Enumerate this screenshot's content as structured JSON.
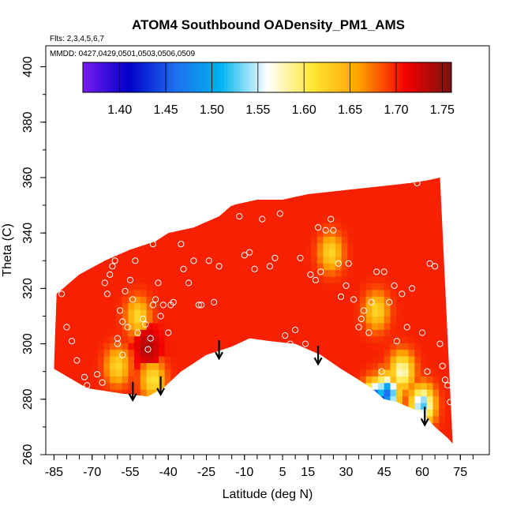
{
  "chart_data": {
    "type": "heatmap",
    "title": "ATOM4 Southbound OADensity_PM1_AMS",
    "annotations": [
      "Flts: 2,3,4,5,6,7",
      "MMDD: 0427,0429,0501,0503,0506,0509"
    ],
    "xlabel": "Latitude (deg N)",
    "ylabel": "Theta (C)",
    "xlim": [
      -87,
      83
    ],
    "ylim": [
      260,
      405
    ],
    "x_ticks": [
      -85,
      -70,
      -55,
      -40,
      -25,
      -10,
      5,
      15,
      30,
      45,
      60,
      75
    ],
    "y_ticks": [
      260,
      280,
      300,
      320,
      340,
      360,
      380,
      400
    ],
    "colorbar": {
      "range": [
        1.36,
        1.76
      ],
      "ticks": [
        1.4,
        1.45,
        1.5,
        1.55,
        1.6,
        1.65,
        1.7,
        1.75
      ],
      "colors": [
        "#7a1cf0",
        "#0000c8",
        "#1e6ef0",
        "#00b4f0",
        "#ffffff",
        "#ffe632",
        "#ffa000",
        "#f50000",
        "#78140f"
      ]
    },
    "field": {
      "base_value": 1.7,
      "upper_boundary": [
        [
          -84,
          318
        ],
        [
          -75,
          325
        ],
        [
          -65,
          330
        ],
        [
          -55,
          334
        ],
        [
          -45,
          337
        ],
        [
          -40,
          340
        ],
        [
          -30,
          342
        ],
        [
          -20,
          346
        ],
        [
          -15,
          350
        ],
        [
          -5,
          352
        ],
        [
          5,
          352
        ],
        [
          15,
          354
        ],
        [
          25,
          355
        ],
        [
          35,
          356
        ],
        [
          45,
          357
        ],
        [
          55,
          358
        ],
        [
          62,
          359
        ],
        [
          67,
          360
        ]
      ],
      "lower_boundary": [
        [
          -85,
          291
        ],
        [
          -72,
          284
        ],
        [
          -58,
          282
        ],
        [
          -48,
          281
        ],
        [
          -42,
          284
        ],
        [
          -35,
          290
        ],
        [
          -25,
          296
        ],
        [
          -15,
          299
        ],
        [
          -8,
          302
        ],
        [
          0,
          301
        ],
        [
          10,
          300
        ],
        [
          20,
          296
        ],
        [
          28,
          291
        ],
        [
          35,
          287
        ],
        [
          40,
          284
        ],
        [
          45,
          280
        ],
        [
          50,
          279
        ],
        [
          55,
          277
        ],
        [
          60,
          275
        ],
        [
          65,
          270
        ],
        [
          70,
          266
        ],
        [
          72,
          264
        ]
      ],
      "features": [
        {
          "lat": -52,
          "theta": 310,
          "value": 1.62
        },
        {
          "lat": -60,
          "theta": 292,
          "value": 1.62
        },
        {
          "lat": -46,
          "theta": 287,
          "value": 1.61
        },
        {
          "lat": 24,
          "theta": 333,
          "value": 1.62
        },
        {
          "lat": 42,
          "theta": 312,
          "value": 1.62
        },
        {
          "lat": 52,
          "theta": 290,
          "value": 1.57
        },
        {
          "lat": 46,
          "theta": 282,
          "value": 1.46
        },
        {
          "lat": 42,
          "theta": 279,
          "value": 1.38
        },
        {
          "lat": 60,
          "theta": 278,
          "value": 1.52
        },
        {
          "lat": -48,
          "theta": 299,
          "value": 1.74
        }
      ]
    },
    "points": [
      [
        -82,
        318
      ],
      [
        -80,
        306
      ],
      [
        -78,
        301
      ],
      [
        -76,
        294
      ],
      [
        -73,
        288
      ],
      [
        -72,
        285
      ],
      [
        -68,
        289
      ],
      [
        -66,
        286
      ],
      [
        -65,
        322
      ],
      [
        -64,
        318
      ],
      [
        -63,
        325
      ],
      [
        -62,
        328
      ],
      [
        -61,
        330
      ],
      [
        -60,
        300
      ],
      [
        -60,
        302
      ],
      [
        -59,
        312
      ],
      [
        -58,
        308
      ],
      [
        -58,
        296
      ],
      [
        -57,
        319
      ],
      [
        -56,
        306
      ],
      [
        -55,
        323
      ],
      [
        -54,
        316
      ],
      [
        -53,
        330
      ],
      [
        -52,
        304
      ],
      [
        -50,
        309
      ],
      [
        -49,
        307
      ],
      [
        -48,
        298
      ],
      [
        -47,
        302
      ],
      [
        -46,
        314
      ],
      [
        -46,
        336
      ],
      [
        -45,
        316
      ],
      [
        -44,
        322
      ],
      [
        -43,
        310
      ],
      [
        -42,
        314
      ],
      [
        -40,
        304
      ],
      [
        -39,
        314
      ],
      [
        -38,
        315
      ],
      [
        -36,
        287
      ],
      [
        -35,
        336
      ],
      [
        -34,
        327
      ],
      [
        -32,
        322
      ],
      [
        -30,
        330
      ],
      [
        -28,
        314
      ],
      [
        -27,
        314
      ],
      [
        -24,
        330
      ],
      [
        -22,
        315
      ],
      [
        -20,
        328
      ],
      [
        -17,
        350
      ],
      [
        -15,
        351
      ],
      [
        -12,
        346
      ],
      [
        -10,
        332
      ],
      [
        -8,
        333
      ],
      [
        -6,
        327
      ],
      [
        -3,
        345
      ],
      [
        0,
        328
      ],
      [
        2,
        331
      ],
      [
        4,
        347
      ],
      [
        6,
        303
      ],
      [
        8,
        300
      ],
      [
        10,
        305
      ],
      [
        12,
        331
      ],
      [
        14,
        300
      ],
      [
        16,
        325
      ],
      [
        18,
        323
      ],
      [
        19,
        342
      ],
      [
        20,
        326
      ],
      [
        22,
        341
      ],
      [
        24,
        345
      ],
      [
        25,
        341
      ],
      [
        27,
        329
      ],
      [
        28,
        317
      ],
      [
        30,
        321
      ],
      [
        31,
        329
      ],
      [
        33,
        316
      ],
      [
        35,
        306
      ],
      [
        36,
        309
      ],
      [
        37,
        312
      ],
      [
        39,
        304
      ],
      [
        40,
        315
      ],
      [
        42,
        326
      ],
      [
        44,
        290
      ],
      [
        45,
        326
      ],
      [
        47,
        315
      ],
      [
        49,
        321
      ],
      [
        50,
        301
      ],
      [
        52,
        318
      ],
      [
        54,
        306
      ],
      [
        56,
        320
      ],
      [
        58,
        358
      ],
      [
        60,
        304
      ],
      [
        62,
        290
      ],
      [
        63,
        329
      ],
      [
        65,
        328
      ],
      [
        67,
        300
      ],
      [
        68,
        292
      ],
      [
        69,
        287
      ],
      [
        70,
        285
      ],
      [
        71,
        279
      ]
    ],
    "arrows": [
      {
        "lat": -54,
        "theta": 280
      },
      {
        "lat": -43,
        "theta": 282
      },
      {
        "lat": -20,
        "theta": 295
      },
      {
        "lat": 19,
        "theta": 293
      },
      {
        "lat": 61,
        "theta": 271
      }
    ]
  }
}
